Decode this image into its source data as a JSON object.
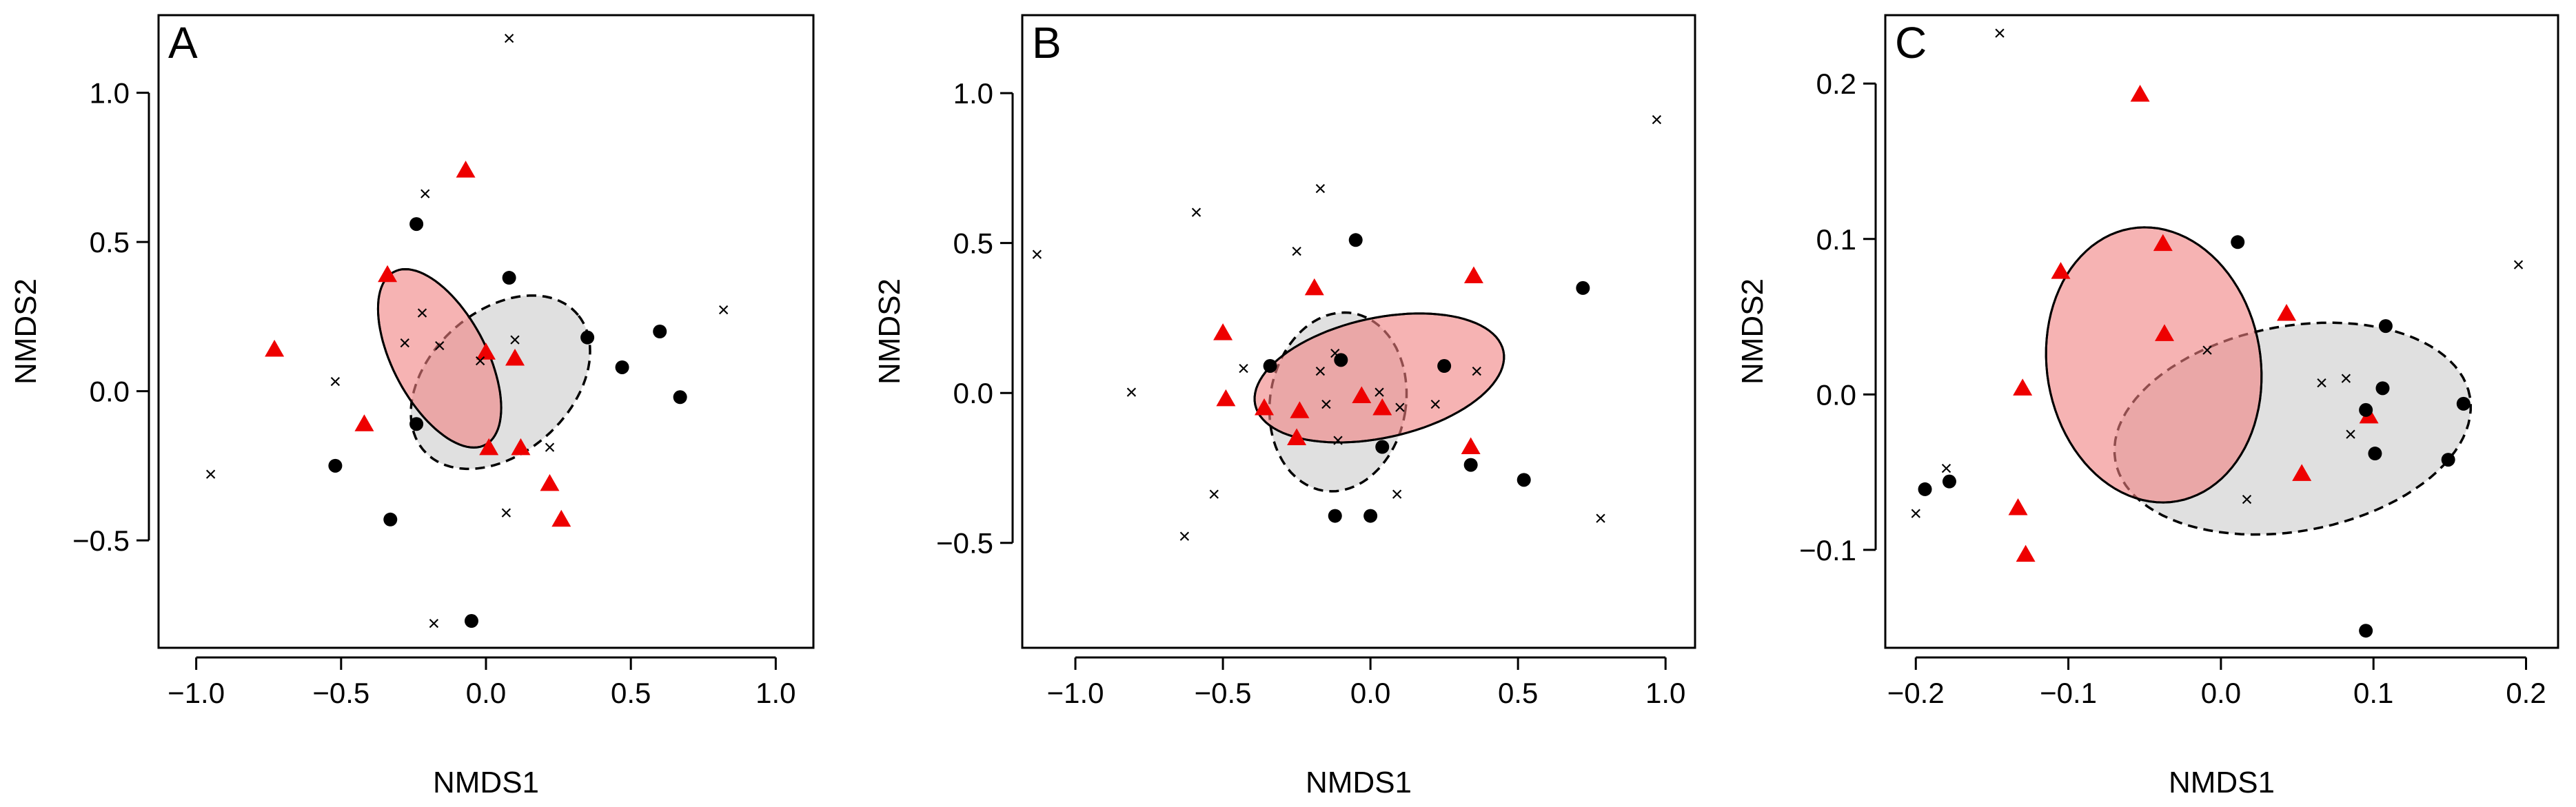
{
  "chart_data": [
    {
      "type": "scatter",
      "panel": "A",
      "xlabel": "NMDS1",
      "ylabel": "NMDS2",
      "xlim": [
        -1.13,
        1.13
      ],
      "ylim": [
        -0.86,
        1.26
      ],
      "xticks": [
        -1.0,
        -0.5,
        0.0,
        0.5,
        1.0
      ],
      "xtick_labels": [
        "−1.0",
        "−0.5",
        "0.0",
        "0.5",
        "1.0"
      ],
      "yticks": [
        -0.5,
        0.0,
        0.5,
        1.0
      ],
      "ytick_labels": [
        "−0.5",
        "0.0",
        "0.5",
        "1.0"
      ],
      "series": [
        {
          "name": "triangles",
          "marker": "triangle",
          "color": "#ee0000",
          "points": [
            [
              -0.07,
              0.74
            ],
            [
              -0.34,
              0.39
            ],
            [
              -0.73,
              0.14
            ],
            [
              0.0,
              0.13
            ],
            [
              0.1,
              0.11
            ],
            [
              -0.42,
              -0.11
            ],
            [
              0.01,
              -0.19
            ],
            [
              0.12,
              -0.19
            ],
            [
              0.22,
              -0.31
            ],
            [
              0.26,
              -0.43
            ]
          ]
        },
        {
          "name": "dots",
          "marker": "dot",
          "color": "#000000",
          "points": [
            [
              -0.24,
              0.56
            ],
            [
              0.08,
              0.38
            ],
            [
              0.35,
              0.18
            ],
            [
              0.6,
              0.2
            ],
            [
              0.47,
              0.08
            ],
            [
              0.67,
              -0.02
            ],
            [
              -0.24,
              -0.11
            ],
            [
              -0.52,
              -0.25
            ],
            [
              -0.33,
              -0.43
            ],
            [
              -0.05,
              -0.77
            ]
          ]
        },
        {
          "name": "crosses",
          "marker": "cross",
          "color": "#000000",
          "points": [
            [
              0.08,
              1.18
            ],
            [
              -0.21,
              0.66
            ],
            [
              -0.22,
              0.26
            ],
            [
              0.82,
              0.27
            ],
            [
              -0.28,
              0.16
            ],
            [
              -0.16,
              0.15
            ],
            [
              0.1,
              0.17
            ],
            [
              -0.02,
              0.1
            ],
            [
              -0.52,
              0.03
            ],
            [
              0.22,
              -0.19
            ],
            [
              -0.95,
              -0.28
            ],
            [
              0.07,
              -0.41
            ],
            [
              -0.18,
              -0.78
            ]
          ]
        }
      ],
      "ellipses": [
        {
          "group": "red",
          "style": "solid",
          "fill": "#f08080",
          "cx": -0.16,
          "cy": 0.11,
          "rx": 0.33,
          "ry": 0.16,
          "angle_deg": -61
        },
        {
          "group": "grey",
          "style": "dashed",
          "fill": "#cccccc",
          "cx": 0.05,
          "cy": 0.03,
          "rx": 0.35,
          "ry": 0.24,
          "angle_deg": 40
        }
      ]
    },
    {
      "type": "scatter",
      "panel": "B",
      "xlabel": "NMDS1",
      "ylabel": "NMDS2",
      "xlim": [
        -1.18,
        1.1
      ],
      "ylim": [
        -0.85,
        1.26
      ],
      "xticks": [
        -1.0,
        -0.5,
        0.0,
        0.5,
        1.0
      ],
      "xtick_labels": [
        "−1.0",
        "−0.5",
        "0.0",
        "0.5",
        "1.0"
      ],
      "yticks": [
        -0.5,
        0.0,
        0.5,
        1.0
      ],
      "ytick_labels": [
        "−0.5",
        "0.0",
        "0.5",
        "1.0"
      ],
      "series": [
        {
          "name": "triangles",
          "marker": "triangle",
          "color": "#ee0000",
          "points": [
            [
              -0.5,
              0.2
            ],
            [
              -0.19,
              0.35
            ],
            [
              0.35,
              0.39
            ],
            [
              -0.49,
              -0.02
            ],
            [
              -0.36,
              -0.05
            ],
            [
              -0.24,
              -0.06
            ],
            [
              -0.03,
              -0.01
            ],
            [
              -0.25,
              -0.15
            ],
            [
              0.04,
              -0.05
            ],
            [
              0.34,
              -0.18
            ]
          ]
        },
        {
          "name": "dots",
          "marker": "dot",
          "color": "#000000",
          "points": [
            [
              -0.05,
              0.51
            ],
            [
              0.72,
              0.35
            ],
            [
              -0.34,
              0.09
            ],
            [
              -0.1,
              0.11
            ],
            [
              0.25,
              0.09
            ],
            [
              0.04,
              -0.18
            ],
            [
              0.34,
              -0.24
            ],
            [
              0.52,
              -0.29
            ],
            [
              -0.12,
              -0.41
            ],
            [
              0.0,
              -0.41
            ]
          ]
        },
        {
          "name": "crosses",
          "marker": "cross",
          "color": "#000000",
          "points": [
            [
              0.97,
              0.91
            ],
            [
              -0.17,
              0.68
            ],
            [
              -0.59,
              0.6
            ],
            [
              -0.25,
              0.47
            ],
            [
              -1.13,
              0.46
            ],
            [
              -0.43,
              0.08
            ],
            [
              -0.12,
              0.13
            ],
            [
              -0.17,
              0.07
            ],
            [
              -0.81,
              0.0
            ],
            [
              0.03,
              0.0
            ],
            [
              -0.15,
              -0.04
            ],
            [
              0.1,
              -0.05
            ],
            [
              0.22,
              -0.04
            ],
            [
              0.36,
              0.07
            ],
            [
              -0.11,
              -0.16
            ],
            [
              -0.53,
              -0.34
            ],
            [
              0.09,
              -0.34
            ],
            [
              -0.63,
              -0.48
            ],
            [
              0.78,
              -0.42
            ]
          ]
        }
      ],
      "ellipses": [
        {
          "group": "red",
          "style": "solid",
          "fill": "#f08080",
          "cx": 0.03,
          "cy": 0.05,
          "rx": 0.43,
          "ry": 0.2,
          "angle_deg": 12
        },
        {
          "group": "grey",
          "style": "dashed",
          "fill": "#cccccc",
          "cx": -0.11,
          "cy": -0.03,
          "rx": 0.23,
          "ry": 0.3,
          "angle_deg": -10
        }
      ]
    },
    {
      "type": "scatter",
      "panel": "C",
      "xlabel": "NMDS1",
      "ylabel": "NMDS2",
      "xlim": [
        -0.22,
        0.221
      ],
      "ylim": [
        -0.163,
        0.244
      ],
      "xticks": [
        -0.2,
        -0.1,
        0.0,
        0.1,
        0.2
      ],
      "xtick_labels": [
        "−0.2",
        "−0.1",
        "0.0",
        "0.1",
        "0.2"
      ],
      "yticks": [
        -0.1,
        0.0,
        0.1,
        0.2
      ],
      "ytick_labels": [
        "−0.1",
        "0.0",
        "0.1",
        "0.2"
      ],
      "series": [
        {
          "name": "triangles",
          "marker": "triangle",
          "color": "#ee0000",
          "points": [
            [
              -0.053,
              0.193
            ],
            [
              -0.038,
              0.097
            ],
            [
              -0.105,
              0.079
            ],
            [
              0.043,
              0.052
            ],
            [
              -0.037,
              0.039
            ],
            [
              -0.13,
              0.004
            ],
            [
              0.097,
              -0.014
            ],
            [
              0.053,
              -0.051
            ],
            [
              -0.133,
              -0.073
            ],
            [
              -0.128,
              -0.103
            ]
          ]
        },
        {
          "name": "dots",
          "marker": "dot",
          "color": "#000000",
          "points": [
            [
              0.011,
              0.098
            ],
            [
              0.108,
              0.044
            ],
            [
              0.106,
              0.004
            ],
            [
              0.095,
              -0.01
            ],
            [
              0.159,
              -0.006
            ],
            [
              0.101,
              -0.038
            ],
            [
              0.149,
              -0.042
            ],
            [
              -0.194,
              -0.061
            ],
            [
              -0.178,
              -0.056
            ],
            [
              0.095,
              -0.152
            ]
          ]
        },
        {
          "name": "crosses",
          "marker": "cross",
          "color": "#000000",
          "points": [
            [
              -0.145,
              0.232
            ],
            [
              0.195,
              0.083
            ],
            [
              -0.009,
              0.028
            ],
            [
              0.082,
              0.01
            ],
            [
              0.066,
              0.007
            ],
            [
              0.085,
              -0.026
            ],
            [
              0.017,
              -0.068
            ],
            [
              -0.18,
              -0.048
            ],
            [
              -0.2,
              -0.077
            ]
          ]
        }
      ],
      "ellipses": [
        {
          "group": "red",
          "style": "solid",
          "fill": "#f08080",
          "cx": -0.044,
          "cy": 0.019,
          "rx": 0.089,
          "ry": 0.07,
          "angle_deg": -80
        },
        {
          "group": "grey",
          "style": "dashed",
          "fill": "#cccccc",
          "cx": 0.047,
          "cy": -0.022,
          "rx": 0.118,
          "ry": 0.066,
          "angle_deg": 10
        }
      ]
    }
  ]
}
